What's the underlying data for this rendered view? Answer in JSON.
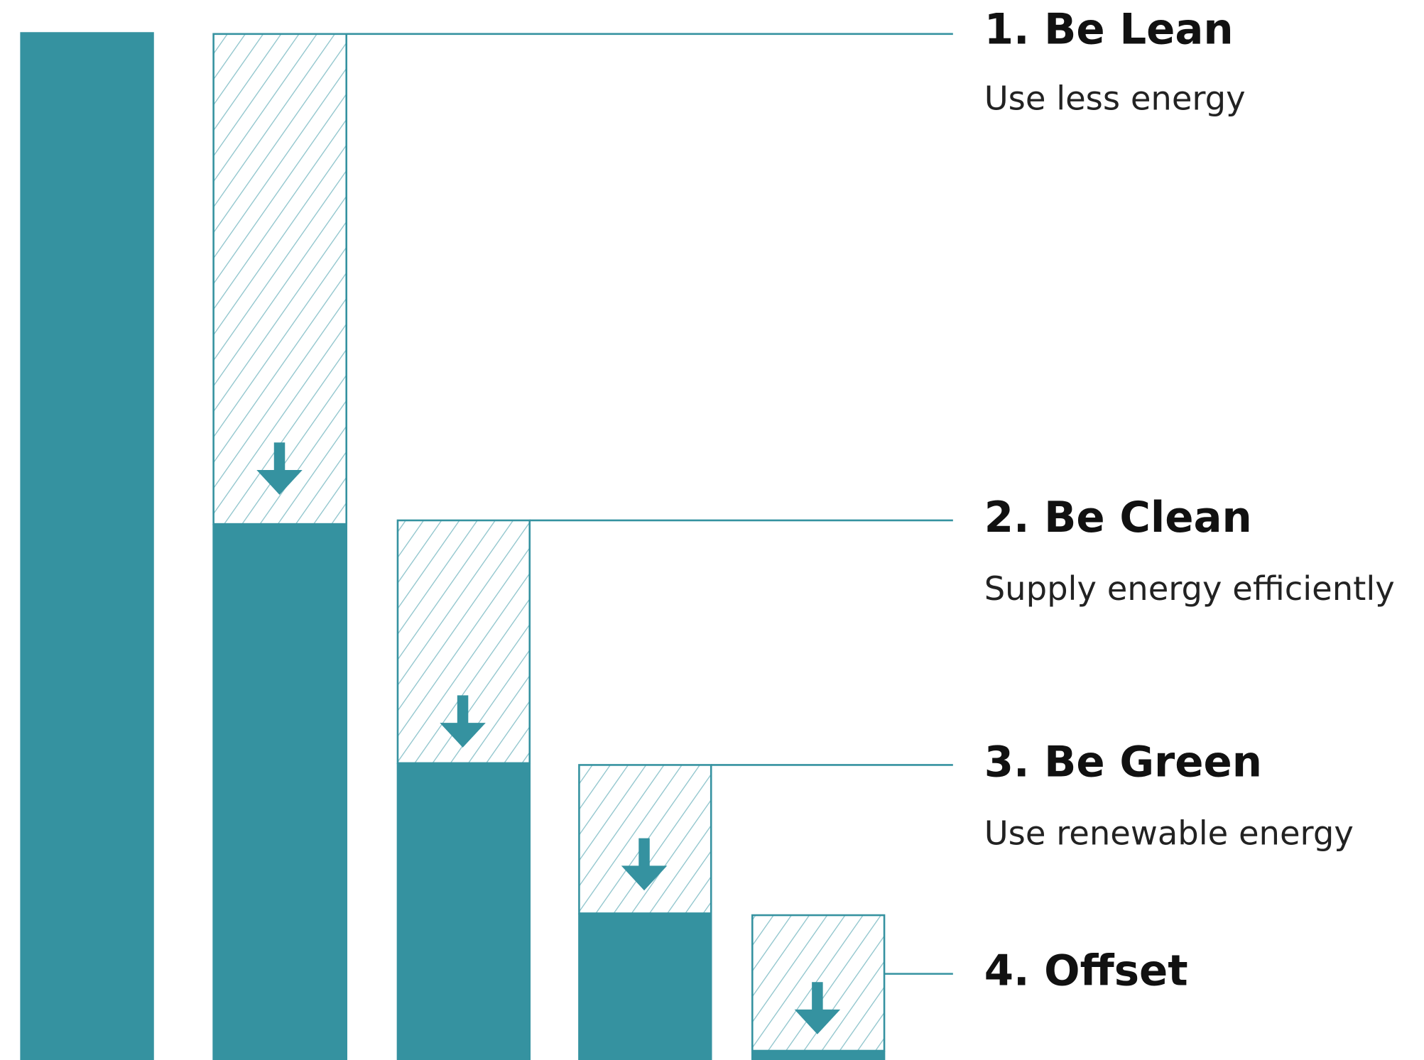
{
  "steps": [
    {
      "title": "1. Be Lean",
      "subtitle": "Use less energy"
    },
    {
      "title": "2. Be Clean",
      "subtitle": "Supply energy efficiently"
    },
    {
      "title": "3. Be Green",
      "subtitle": "Use renewable energy"
    },
    {
      "title": "4. Offset"
    }
  ]
}
